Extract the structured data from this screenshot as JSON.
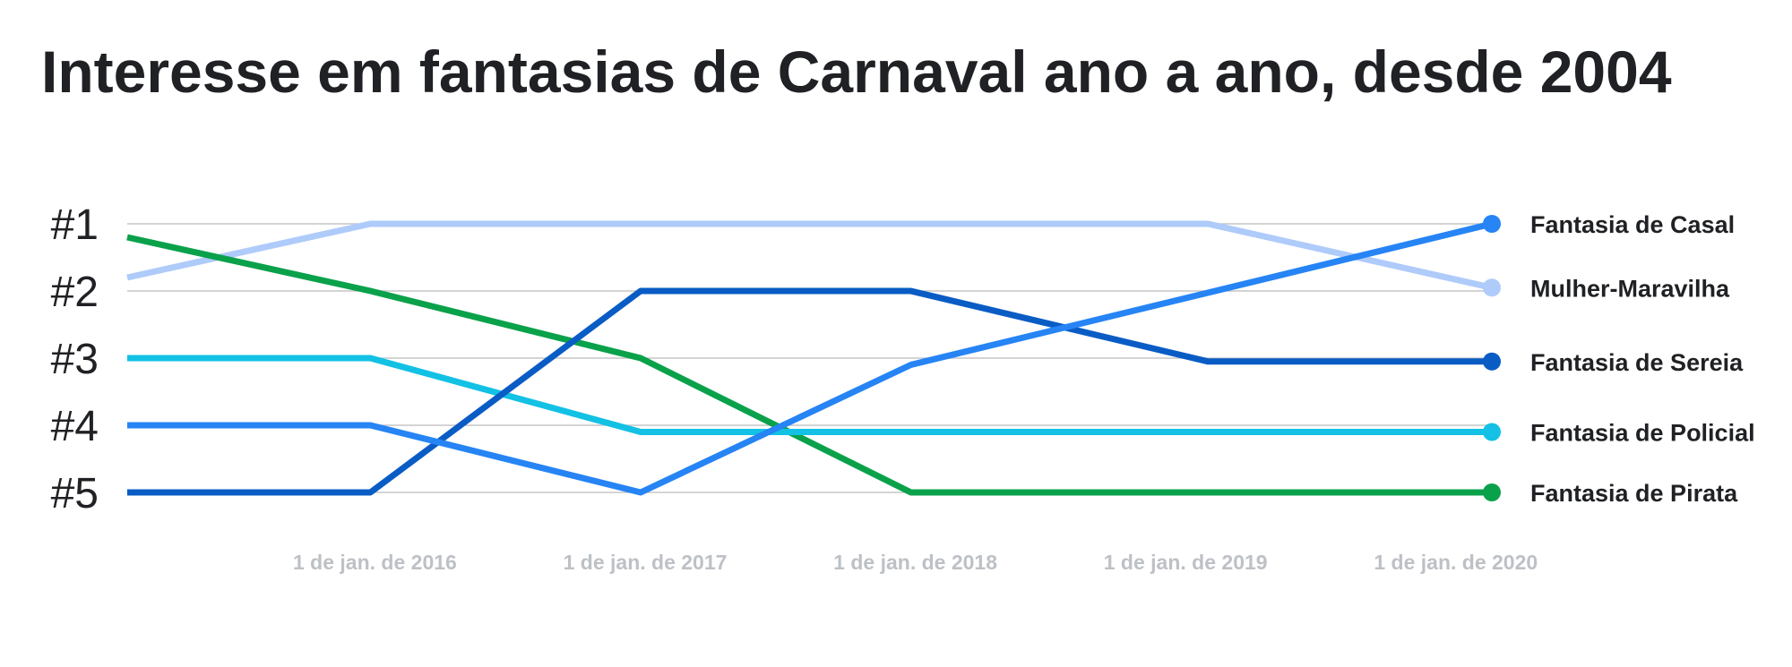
{
  "chart_data": {
    "type": "line",
    "title": "Interesse em fantasias de Carnaval ano a ano, desde 2004",
    "y_ticks": [
      "#1",
      "#2",
      "#3",
      "#4",
      "#5"
    ],
    "y_reversed": true,
    "ylim": [
      1,
      5
    ],
    "x_ticks": [
      "1 de jan. de 2016",
      "1 de jan. de 2017",
      "1 de jan. de 2018",
      "1 de jan. de 2019",
      "1 de jan. de 2020"
    ],
    "x_tick_years": [
      2016,
      2017,
      2018,
      2019,
      2020
    ],
    "xlim": [
      2015.1,
      2020.15
    ],
    "grid": true,
    "legend_placement": "right, at line ends",
    "series": [
      {
        "name": "Mulher-Maravilha",
        "color": "#aecbfa",
        "points": [
          [
            2015.1,
            1.8
          ],
          [
            2016.0,
            1.0
          ],
          [
            2019.1,
            1.0
          ],
          [
            2020.15,
            1.95
          ]
        ]
      },
      {
        "name": "Fantasia de Pirata",
        "color": "#0aa14b",
        "points": [
          [
            2015.1,
            1.2
          ],
          [
            2016.0,
            2.0
          ],
          [
            2017.0,
            3.0
          ],
          [
            2018.0,
            5.0
          ],
          [
            2020.15,
            5.0
          ]
        ]
      },
      {
        "name": "Fantasia de Policial",
        "color": "#12c1e4",
        "points": [
          [
            2015.1,
            3.0
          ],
          [
            2016.0,
            3.0
          ],
          [
            2017.0,
            4.1
          ],
          [
            2020.15,
            4.1
          ]
        ]
      },
      {
        "name": "Fantasia de Sereia",
        "color": "#0a5cc5",
        "points": [
          [
            2015.1,
            5.0
          ],
          [
            2016.0,
            5.0
          ],
          [
            2017.0,
            2.0
          ],
          [
            2018.0,
            2.0
          ],
          [
            2019.1,
            3.05
          ],
          [
            2020.15,
            3.05
          ]
        ]
      },
      {
        "name": "Fantasia de Casal",
        "color": "#2684f5",
        "points": [
          [
            2015.1,
            4.0
          ],
          [
            2016.0,
            4.0
          ],
          [
            2017.0,
            5.0
          ],
          [
            2018.0,
            3.1
          ],
          [
            2020.15,
            1.0
          ]
        ]
      }
    ]
  }
}
